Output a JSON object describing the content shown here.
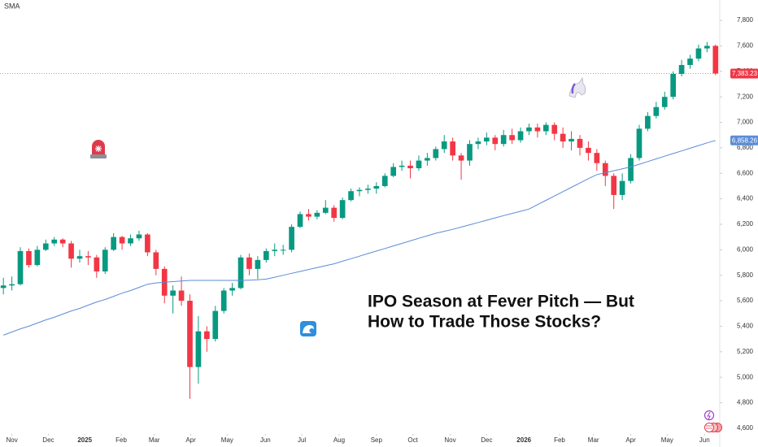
{
  "chart_data": {
    "type": "candlestick",
    "annotation": [
      "IPO Season at Fever Pitch — But",
      "How to Trade Those Stocks?"
    ],
    "xlim": [
      -0.4,
      84.5
    ],
    "xticks": [
      {
        "value": 1,
        "label": "Nov"
      },
      {
        "value": 5.3,
        "label": "Dec"
      },
      {
        "value": 9.6,
        "label": "2025"
      },
      {
        "value": 13.9,
        "label": "Feb"
      },
      {
        "value": 17.8,
        "label": "Mar"
      },
      {
        "value": 22.1,
        "label": "Apr"
      },
      {
        "value": 26.4,
        "label": "May"
      },
      {
        "value": 30.9,
        "label": "Jun"
      },
      {
        "value": 35.2,
        "label": "Jul"
      },
      {
        "value": 39.6,
        "label": "Aug"
      },
      {
        "value": 44,
        "label": "Sep"
      },
      {
        "value": 48.3,
        "label": "Oct"
      },
      {
        "value": 52.7,
        "label": "Nov"
      },
      {
        "value": 57,
        "label": "Dec"
      },
      {
        "value": 61.4,
        "label": "2026"
      },
      {
        "value": 65.6,
        "label": "Feb"
      },
      {
        "value": 69.6,
        "label": "Mar"
      },
      {
        "value": 74,
        "label": "Apr"
      },
      {
        "value": 78.3,
        "label": "May"
      },
      {
        "value": 82.7,
        "label": "Jun"
      }
    ],
    "ylim": [
      4580,
      7960
    ],
    "yticks": [
      {
        "value": 4600,
        "label": "4,600"
      },
      {
        "value": 4800,
        "label": "4,800"
      },
      {
        "value": 5000,
        "label": "5,000"
      },
      {
        "value": 5200,
        "label": "5,200"
      },
      {
        "value": 5400,
        "label": "5,400"
      },
      {
        "value": 5600,
        "label": "5,600"
      },
      {
        "value": 5800,
        "label": "5,800"
      },
      {
        "value": 6000,
        "label": "6,000"
      },
      {
        "value": 6200,
        "label": "6,200"
      },
      {
        "value": 6400,
        "label": "6,400"
      },
      {
        "value": 6600,
        "label": "6,600"
      },
      {
        "value": 6800,
        "label": "6,800"
      },
      {
        "value": 7000,
        "label": "7,000"
      },
      {
        "value": 7200,
        "label": "7,200"
      },
      {
        "value": 7400,
        "label": "7,400"
      },
      {
        "value": 7600,
        "label": "7,600"
      },
      {
        "value": 7800,
        "label": "7,800"
      }
    ],
    "series": [
      {
        "type": "candlestick",
        "up_color": "#089981",
        "down_color": "#f23645",
        "open": [
          5700,
          5720,
          5730,
          5990,
          5880,
          6000,
          6050,
          6080,
          6050,
          5930,
          5950,
          5940,
          5830,
          6000,
          6100,
          6050,
          6090,
          6120,
          5980,
          5850,
          5640,
          5680,
          5600,
          5080,
          5360,
          5300,
          5520,
          5680,
          5700,
          5940,
          5850,
          5920,
          5990,
          6000,
          6000,
          6180,
          6280,
          6260,
          6290,
          6330,
          6250,
          6390,
          6460,
          6470,
          6480,
          6500,
          6580,
          6650,
          6660,
          6640,
          6700,
          6720,
          6790,
          6850,
          6740,
          6700,
          6830,
          6850,
          6880,
          6830,
          6900,
          6860,
          6930,
          6960,
          6930,
          6980,
          6910,
          6850,
          6870,
          6800,
          6760,
          6680,
          6580,
          6430,
          6540,
          6720,
          6950,
          7050,
          7120,
          7200,
          7380,
          7450,
          7500,
          7580,
          7600
        ],
        "high": [
          5780,
          5790,
          6020,
          6010,
          6030,
          6080,
          6100,
          6090,
          6070,
          6000,
          5990,
          5960,
          6020,
          6130,
          6110,
          6120,
          6150,
          6130,
          6000,
          5870,
          5720,
          5790,
          5650,
          5480,
          5400,
          5560,
          5700,
          5740,
          5960,
          5970,
          5950,
          6010,
          6050,
          6040,
          6200,
          6300,
          6320,
          6310,
          6390,
          6350,
          6410,
          6480,
          6490,
          6510,
          6530,
          6600,
          6680,
          6700,
          6700,
          6740,
          6760,
          6810,
          6900,
          6880,
          6760,
          6860,
          6880,
          6920,
          6900,
          6940,
          6950,
          6960,
          6990,
          6990,
          7000,
          7000,
          6960,
          6930,
          6900,
          6850,
          6790,
          6700,
          6600,
          6600,
          6750,
          6980,
          7080,
          7160,
          7240,
          7400,
          7490,
          7530,
          7610,
          7630,
          7610
        ],
        "low": [
          5650,
          5680,
          5720,
          5860,
          5870,
          5990,
          6030,
          6020,
          5860,
          5900,
          5880,
          5780,
          5810,
          5990,
          6000,
          6030,
          6070,
          5950,
          5800,
          5580,
          5500,
          5560,
          4830,
          4950,
          5200,
          5280,
          5500,
          5640,
          5690,
          5800,
          5770,
          5900,
          5950,
          5960,
          5980,
          6170,
          6230,
          6240,
          6280,
          6220,
          6240,
          6380,
          6420,
          6440,
          6440,
          6490,
          6570,
          6620,
          6560,
          6620,
          6660,
          6700,
          6760,
          6700,
          6550,
          6660,
          6790,
          6820,
          6780,
          6810,
          6830,
          6840,
          6900,
          6880,
          6900,
          6860,
          6800,
          6780,
          6740,
          6700,
          6620,
          6500,
          6320,
          6390,
          6520,
          6700,
          6930,
          7030,
          7100,
          7180,
          7360,
          7420,
          7480,
          7550,
          7370
        ],
        "close": [
          5720,
          5730,
          5990,
          5880,
          6000,
          6050,
          6080,
          6050,
          5930,
          5950,
          5940,
          5830,
          6000,
          6100,
          6050,
          6090,
          6120,
          5980,
          5850,
          5640,
          5680,
          5600,
          5080,
          5360,
          5300,
          5520,
          5680,
          5700,
          5940,
          5850,
          5920,
          5990,
          6000,
          6000,
          6180,
          6280,
          6260,
          6290,
          6330,
          6250,
          6390,
          6460,
          6470,
          6480,
          6500,
          6580,
          6650,
          6660,
          6640,
          6700,
          6720,
          6790,
          6850,
          6740,
          6700,
          6830,
          6850,
          6880,
          6830,
          6900,
          6860,
          6930,
          6960,
          6930,
          6980,
          6910,
          6850,
          6870,
          6800,
          6760,
          6680,
          6580,
          6430,
          6540,
          6720,
          6950,
          7050,
          7120,
          7200,
          7380,
          7450,
          7500,
          7580,
          7600,
          7383.23
        ],
        "price_label": {
          "value": 7383.23,
          "label": "7,383.23"
        }
      },
      {
        "type": "line",
        "name": "SMA",
        "color": "#5b8cd6",
        "values": [
          5330,
          5355,
          5380,
          5400,
          5425,
          5450,
          5470,
          5495,
          5520,
          5540,
          5565,
          5590,
          5610,
          5635,
          5660,
          5680,
          5705,
          5730,
          5740,
          5745,
          5750,
          5755,
          5760,
          5760,
          5760,
          5760,
          5760,
          5760,
          5760,
          5762,
          5765,
          5770,
          5785,
          5800,
          5815,
          5830,
          5845,
          5860,
          5875,
          5890,
          5910,
          5930,
          5950,
          5970,
          5990,
          6010,
          6030,
          6050,
          6070,
          6090,
          6110,
          6130,
          6145,
          6160,
          6178,
          6196,
          6214,
          6232,
          6250,
          6268,
          6285,
          6302,
          6320,
          6354,
          6388,
          6422,
          6456,
          6490,
          6524,
          6558,
          6590,
          6605,
          6620,
          6635,
          6650,
          6671,
          6692,
          6713,
          6734,
          6755,
          6776,
          6797,
          6818,
          6839,
          6858.26
        ],
        "price_label": {
          "value": 6858.26,
          "label": "6,858.26"
        }
      }
    ]
  }
}
